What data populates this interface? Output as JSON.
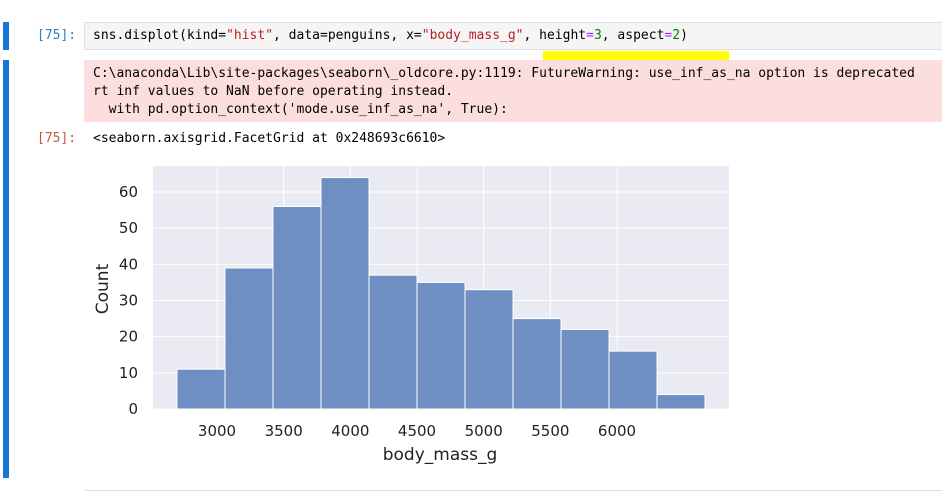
{
  "notebook": {
    "input_prompt": "[75]:",
    "output_prompt": "[75]:",
    "code": {
      "fn": "sns.displot(kind=",
      "s1": "\"hist\"",
      "p2": ", data=penguins, x=",
      "s2": "\"body_mass_g\"",
      "p3": ", height",
      "op1": "=",
      "n1": "3",
      "p4": ", aspect",
      "op2": "=",
      "n2": "2",
      "p5": ")"
    },
    "stderr_lines": [
      "C:\\anaconda\\Lib\\site-packages\\seaborn\\_oldcore.py:1119: FutureWarning: use_inf_as_na option is deprecated",
      "rt inf values to NaN before operating instead.",
      "  with pd.option_context('mode.use_inf_as_na', True):"
    ],
    "output_repr": "<seaborn.axisgrid.FacetGrid at 0x248693c6610>"
  },
  "chart_data": {
    "type": "bar",
    "subtype": "histogram",
    "xlabel": "body_mass_g",
    "ylabel": "Count",
    "bins": [
      {
        "x0": 2700,
        "x1": 3060,
        "count": 11
      },
      {
        "x0": 3060,
        "x1": 3420,
        "count": 39
      },
      {
        "x0": 3420,
        "x1": 3780,
        "count": 56
      },
      {
        "x0": 3780,
        "x1": 4140,
        "count": 64
      },
      {
        "x0": 4140,
        "x1": 4500,
        "count": 37
      },
      {
        "x0": 4500,
        "x1": 4860,
        "count": 35
      },
      {
        "x0": 4860,
        "x1": 5220,
        "count": 33
      },
      {
        "x0": 5220,
        "x1": 5580,
        "count": 25
      },
      {
        "x0": 5580,
        "x1": 5940,
        "count": 22
      },
      {
        "x0": 5940,
        "x1": 6300,
        "count": 16
      },
      {
        "x0": 6300,
        "x1": 6660,
        "count": 4
      }
    ],
    "xticks": [
      3000,
      3500,
      4000,
      4500,
      5000,
      5500,
      6000
    ],
    "yticks": [
      0,
      10,
      20,
      30,
      40,
      50,
      60
    ],
    "xlim": [
      2520,
      6840
    ],
    "ylim": [
      0,
      67.2
    ],
    "grid": true,
    "colors": {
      "bar": "#6f8fc2",
      "bar_edge": "#ffffff",
      "plot_bg": "#eaeaf2",
      "grid": "#ffffff"
    }
  }
}
